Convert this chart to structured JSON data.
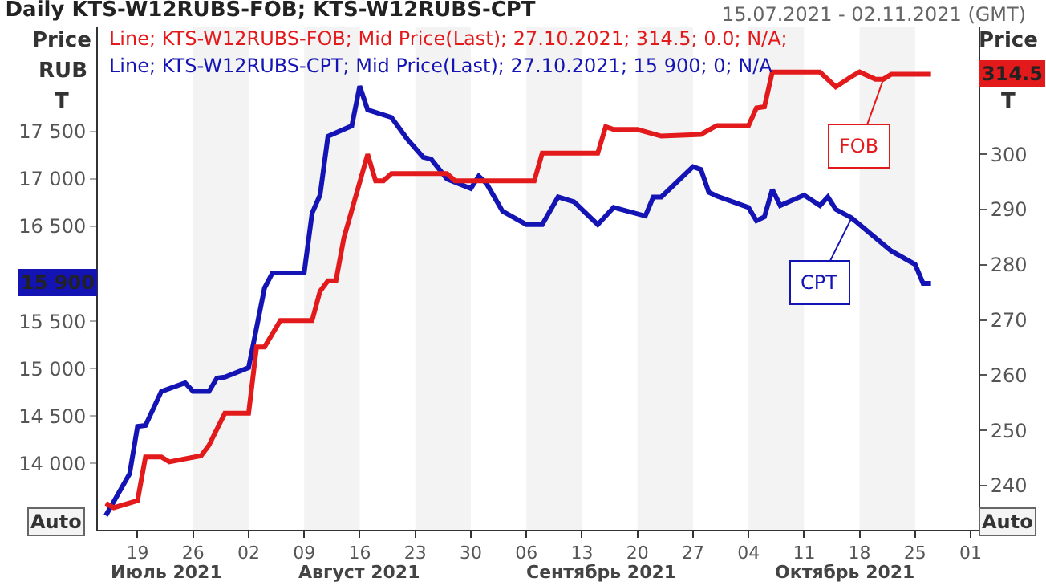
{
  "chart_data": {
    "type": "line",
    "title": "Daily KTS-W12RUBS-FOB; KTS-W12RUBS-CPT",
    "subtitle": "15.07.2021 - 02.11.2021 (GMT)",
    "ylabel": "Price\nRUB\nT",
    "y2label": "Price\nT",
    "series": [
      {
        "name": "FOB",
        "color": "#e31a1c",
        "axis": "y2",
        "x": [
          "2021-07-15",
          "2021-07-16",
          "2021-07-19",
          "2021-07-20",
          "2021-07-22",
          "2021-07-23",
          "2021-07-27",
          "2021-07-28",
          "2021-07-30",
          "2021-08-02",
          "2021-08-03",
          "2021-08-04",
          "2021-08-06",
          "2021-08-10",
          "2021-08-11",
          "2021-08-12",
          "2021-08-13",
          "2021-08-14",
          "2021-08-17",
          "2021-08-18",
          "2021-08-19",
          "2021-08-20",
          "2021-08-27",
          "2021-08-28",
          "2021-09-07",
          "2021-09-08",
          "2021-09-15",
          "2021-09-16",
          "2021-09-17",
          "2021-09-20",
          "2021-09-23",
          "2021-09-28",
          "2021-09-30",
          "2021-10-04",
          "2021-10-05",
          "2021-10-06",
          "2021-10-07",
          "2021-10-13",
          "2021-10-15",
          "2021-10-17",
          "2021-10-18",
          "2021-10-20",
          "2021-10-21",
          "2021-10-22",
          "2021-10-27"
        ],
        "values": [
          236.8,
          236,
          237.3,
          245.2,
          245.2,
          244.3,
          245.4,
          247.3,
          253.1,
          253.1,
          265.1,
          265.1,
          269.9,
          269.9,
          275.2,
          277.1,
          277.1,
          284.8,
          300,
          295.2,
          295.2,
          296.5,
          296.5,
          295.2,
          295.2,
          300.2,
          300.2,
          305,
          304.5,
          304.5,
          303.3,
          303.6,
          305.2,
          305.2,
          308.4,
          308.6,
          314.9,
          314.9,
          312.2,
          314.1,
          314.9,
          313.6,
          313.6,
          314.5,
          314.5
        ]
      },
      {
        "name": "CPT",
        "color": "#1414b4",
        "axis": "y",
        "x": [
          "2021-07-15",
          "2021-07-18",
          "2021-07-19",
          "2021-07-20",
          "2021-07-22",
          "2021-07-25",
          "2021-07-26",
          "2021-07-28",
          "2021-07-29",
          "2021-07-30",
          "2021-08-02",
          "2021-08-04",
          "2021-08-05",
          "2021-08-09",
          "2021-08-10",
          "2021-08-11",
          "2021-08-12",
          "2021-08-15",
          "2021-08-16",
          "2021-08-17",
          "2021-08-20",
          "2021-08-22",
          "2021-08-24",
          "2021-08-25",
          "2021-08-27",
          "2021-08-30",
          "2021-08-31",
          "2021-09-01",
          "2021-09-03",
          "2021-09-06",
          "2021-09-08",
          "2021-09-10",
          "2021-09-12",
          "2021-09-15",
          "2021-09-17",
          "2021-09-21",
          "2021-09-22",
          "2021-09-23",
          "2021-09-27",
          "2021-09-28",
          "2021-09-29",
          "2021-09-30",
          "2021-10-04",
          "2021-10-05",
          "2021-10-06",
          "2021-10-07",
          "2021-10-08",
          "2021-10-11",
          "2021-10-13",
          "2021-10-14",
          "2021-10-15",
          "2021-10-17",
          "2021-10-22",
          "2021-10-25",
          "2021-10-26",
          "2021-10-27"
        ],
        "values": [
          13450,
          13890,
          14390,
          14400,
          14760,
          14850,
          14760,
          14760,
          14900,
          14910,
          15010,
          15850,
          16010,
          16010,
          16640,
          16830,
          17450,
          17560,
          17980,
          17730,
          17650,
          17420,
          17230,
          17210,
          17000,
          16900,
          17030,
          16950,
          16660,
          16520,
          16520,
          16810,
          16760,
          16520,
          16700,
          16610,
          16810,
          16810,
          17130,
          17100,
          16860,
          16820,
          16700,
          16560,
          16600,
          16890,
          16720,
          16830,
          16720,
          16810,
          16680,
          16590,
          16240,
          16100,
          15900,
          15900
        ]
      }
    ],
    "xlim": [
      "2021-07-14",
      "2021-11-02"
    ],
    "xticks": [
      {
        "value": "2021-07-19",
        "label": "19"
      },
      {
        "value": "2021-07-26",
        "label": "26"
      },
      {
        "value": "2021-08-02",
        "label": "02"
      },
      {
        "value": "2021-08-09",
        "label": "09"
      },
      {
        "value": "2021-08-16",
        "label": "16"
      },
      {
        "value": "2021-08-23",
        "label": "23"
      },
      {
        "value": "2021-08-30",
        "label": "30"
      },
      {
        "value": "2021-09-06",
        "label": "06"
      },
      {
        "value": "2021-09-13",
        "label": "13"
      },
      {
        "value": "2021-09-20",
        "label": "20"
      },
      {
        "value": "2021-09-27",
        "label": "27"
      },
      {
        "value": "2021-10-04",
        "label": "04"
      },
      {
        "value": "2021-10-11",
        "label": "11"
      },
      {
        "value": "2021-10-18",
        "label": "18"
      },
      {
        "value": "2021-10-25",
        "label": "25"
      },
      {
        "value": "2021-11-01",
        "label": "01"
      }
    ],
    "ylim": [
      13300,
      18600
    ],
    "yticks": [
      {
        "value": 14000,
        "label": "14 000"
      },
      {
        "value": 14500,
        "label": "14 500"
      },
      {
        "value": 15000,
        "label": "15 000"
      },
      {
        "value": 15500,
        "label": "15 500"
      },
      {
        "value": 16000,
        "label": null
      },
      {
        "value": 16500,
        "label": "16 500"
      },
      {
        "value": 17000,
        "label": "17 000"
      },
      {
        "value": 17500,
        "label": "17 500"
      }
    ],
    "y2lim": [
      232,
      323
    ],
    "y2ticks": [
      240,
      250,
      260,
      270,
      280,
      290,
      300
    ],
    "bands": [
      {
        "axis": "x",
        "from": "2021-07-26",
        "to": "2021-08-02",
        "color": "#f3f3f3"
      },
      {
        "axis": "x",
        "from": "2021-08-09",
        "to": "2021-08-16",
        "color": "#f3f3f3"
      },
      {
        "axis": "x",
        "from": "2021-08-23",
        "to": "2021-08-30",
        "color": "#f3f3f3"
      },
      {
        "axis": "x",
        "from": "2021-09-06",
        "to": "2021-09-13",
        "color": "#f3f3f3"
      },
      {
        "axis": "x",
        "from": "2021-09-20",
        "to": "2021-09-27",
        "color": "#f3f3f3"
      },
      {
        "axis": "x",
        "from": "2021-10-04",
        "to": "2021-10-11",
        "color": "#f3f3f3"
      },
      {
        "axis": "x",
        "from": "2021-10-18",
        "to": "2021-10-25",
        "color": "#f3f3f3"
      }
    ],
    "annotations": [
      "Line; KTS-W12RUBS-FOB; Mid Price(Last); 27.10.2021; 314.5; 0.0; N/A;",
      "Line; KTS-W12RUBS-CPT; Mid Price(Last); 27.10.2021; 15 900; 0; N/A",
      "Auto",
      "Auto",
      "15 900",
      "314.5",
      "Июль 2021",
      "Август 2021",
      "Сентябрь 2021",
      "Октябрь 2021"
    ],
    "grid": false,
    "legend": "right",
    "marker": "none",
    "line_style": "solid"
  }
}
